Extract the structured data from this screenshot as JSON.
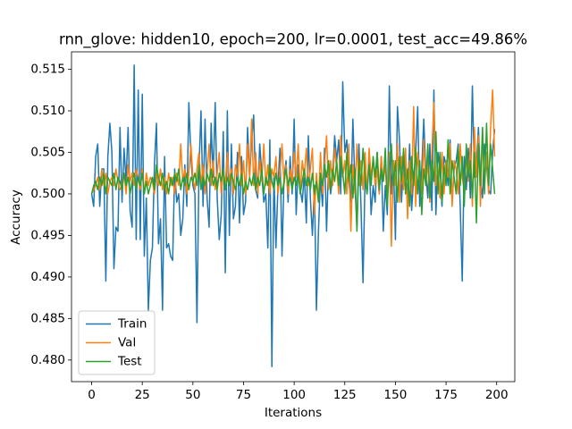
{
  "chart_data": {
    "type": "line",
    "title": "rnn_glove: hidden10, epoch=200, lr=0.0001, test_acc=49.86%",
    "xlabel": "Iterations",
    "ylabel": "Accuracy",
    "xlim": [
      -9.95,
      208.95
    ],
    "ylim": [
      0.4774,
      0.5171
    ],
    "xticks": [
      0,
      25,
      50,
      75,
      100,
      125,
      150,
      175,
      200
    ],
    "yticks": [
      {
        "value": 0.48,
        "label": "0.480"
      },
      0.485,
      {
        "value": 0.49,
        "label": "0.490"
      },
      0.495,
      {
        "value": 0.5,
        "label": "0.500"
      },
      0.505,
      {
        "value": 0.51,
        "label": "0.510"
      },
      0.515
    ],
    "legend": "lower left",
    "x": [
      0,
      1,
      2,
      3,
      4,
      5,
      6,
      7,
      8,
      9,
      10,
      11,
      12,
      13,
      14,
      15,
      16,
      17,
      18,
      19,
      20,
      21,
      22,
      23,
      24,
      25,
      26,
      27,
      28,
      29,
      30,
      31,
      32,
      33,
      34,
      35,
      36,
      37,
      38,
      39,
      40,
      41,
      42,
      43,
      44,
      45,
      46,
      47,
      48,
      49,
      50,
      51,
      52,
      53,
      54,
      55,
      56,
      57,
      58,
      59,
      60,
      61,
      62,
      63,
      64,
      65,
      66,
      67,
      68,
      69,
      70,
      71,
      72,
      73,
      74,
      75,
      76,
      77,
      78,
      79,
      80,
      81,
      82,
      83,
      84,
      85,
      86,
      87,
      88,
      89,
      90,
      91,
      92,
      93,
      94,
      95,
      96,
      97,
      98,
      99,
      100,
      101,
      102,
      103,
      104,
      105,
      106,
      107,
      108,
      109,
      110,
      111,
      112,
      113,
      114,
      115,
      116,
      117,
      118,
      119,
      120,
      121,
      122,
      123,
      124,
      125,
      126,
      127,
      128,
      129,
      130,
      131,
      132,
      133,
      134,
      135,
      136,
      137,
      138,
      139,
      140,
      141,
      142,
      143,
      144,
      145,
      146,
      147,
      148,
      149,
      150,
      151,
      152,
      153,
      154,
      155,
      156,
      157,
      158,
      159,
      160,
      161,
      162,
      163,
      164,
      165,
      166,
      167,
      168,
      169,
      170,
      171,
      172,
      173,
      174,
      175,
      176,
      177,
      178,
      179,
      180,
      181,
      182,
      183,
      184,
      185,
      186,
      187,
      188,
      189,
      190,
      191,
      192,
      193,
      194,
      195,
      196,
      197,
      198,
      199
    ],
    "series": [
      {
        "name": "Train",
        "color": "#1f77b4",
        "values": [
          0.5,
          0.4985,
          0.5045,
          0.506,
          0.4985,
          0.503,
          0.503,
          0.4895,
          0.5045,
          0.5085,
          0.505,
          0.491,
          0.496,
          0.4955,
          0.508,
          0.499,
          0.5055,
          0.5015,
          0.508,
          0.498,
          0.496,
          0.5155,
          0.4945,
          0.5125,
          0.4945,
          0.512,
          0.4925,
          0.4995,
          0.486,
          0.492,
          0.4935,
          0.5035,
          0.5085,
          0.494,
          0.497,
          0.486,
          0.5045,
          0.4935,
          0.494,
          0.4925,
          0.492,
          0.503,
          0.499,
          0.5,
          0.495,
          0.497,
          0.5035,
          0.4985,
          0.511,
          0.5045,
          0.501,
          0.5,
          0.4845,
          0.503,
          0.51,
          0.4985,
          0.509,
          0.4995,
          0.496,
          0.5085,
          0.502,
          0.511,
          0.4995,
          0.4945,
          0.4975,
          0.5075,
          0.4905,
          0.51,
          0.495,
          0.506,
          0.497,
          0.4985,
          0.505,
          0.4965,
          0.5045,
          0.4975,
          0.499,
          0.508,
          0.502,
          0.5065,
          0.5095,
          0.5005,
          0.4995,
          0.506,
          0.5025,
          0.499,
          0.5,
          0.4935,
          0.5065,
          0.4792,
          0.5025,
          0.4935,
          0.501,
          0.5055,
          0.4925,
          0.502,
          0.504,
          0.499,
          0.5045,
          0.5,
          0.509,
          0.4975,
          0.5035,
          0.5005,
          0.499,
          0.5025,
          0.4965,
          0.507,
          0.4995,
          0.495,
          0.501,
          0.486,
          0.4955,
          0.502,
          0.4985,
          0.5055,
          0.4955,
          0.504,
          0.5,
          0.502,
          0.507,
          0.504,
          0.5065,
          0.5,
          0.5135,
          0.505,
          0.5065,
          0.5015,
          0.499,
          0.509,
          0.501,
          0.496,
          0.506,
          0.4985,
          0.4893,
          0.502,
          0.5,
          0.5045,
          0.4975,
          0.501,
          0.499,
          0.505,
          0.5,
          0.5045,
          0.4955,
          0.501,
          0.4975,
          0.513,
          0.5,
          0.504,
          0.4945,
          0.5105,
          0.5065,
          0.499,
          0.504,
          0.503,
          0.4995,
          0.506,
          0.498,
          0.502,
          0.505,
          0.5105,
          0.4985,
          0.503,
          0.509,
          0.5025,
          0.4995,
          0.506,
          0.498,
          0.5125,
          0.4975,
          0.505,
          0.503,
          0.4985,
          0.5045,
          0.5035,
          0.501,
          0.5065,
          0.499,
          0.503,
          0.504,
          0.506,
          0.4985,
          0.4895,
          0.5045,
          0.5005,
          0.5055,
          0.4995,
          0.513,
          0.502,
          0.5035,
          0.508,
          0.5015,
          0.4995,
          0.506,
          0.5035,
          0.5005,
          0.5,
          0.505,
          0.5078
        ]
      },
      {
        "name": "Val",
        "color": "#ff7f0e",
        "values": [
          0.5,
          0.5005,
          0.501,
          0.502,
          0.5005,
          0.503,
          0.501,
          0.5025,
          0.5,
          0.5015,
          0.502,
          0.501,
          0.503,
          0.5015,
          0.5005,
          0.501,
          0.5025,
          0.5,
          0.5035,
          0.5015,
          0.5025,
          0.501,
          0.503,
          0.502,
          0.5005,
          0.503,
          0.5,
          0.5025,
          0.501,
          0.502,
          0.5015,
          0.5,
          0.5025,
          0.501,
          0.503,
          0.5005,
          0.502,
          0.5,
          0.5025,
          0.501,
          0.502,
          0.5,
          0.5025,
          0.501,
          0.506,
          0.5015,
          0.503,
          0.5,
          0.5025,
          0.506,
          0.502,
          0.5005,
          0.503,
          0.505,
          0.501,
          0.5035,
          0.5,
          0.5025,
          0.506,
          0.501,
          0.504,
          0.5005,
          0.5025,
          0.505,
          0.5,
          0.503,
          0.501,
          0.505,
          0.5015,
          0.503,
          0.5,
          0.5035,
          0.502,
          0.506,
          0.501,
          0.504,
          0.5,
          0.506,
          0.502,
          0.509,
          0.501,
          0.505,
          0.5,
          0.504,
          0.5015,
          0.506,
          0.501,
          0.5035,
          0.5,
          0.503,
          0.502,
          0.5045,
          0.5,
          0.5025,
          0.506,
          0.501,
          0.5035,
          0.5,
          0.503,
          0.5015,
          0.505,
          0.502,
          0.506,
          0.5,
          0.504,
          0.502,
          0.5055,
          0.501,
          0.503,
          0.5055,
          0.4975,
          0.5025,
          0.499,
          0.505,
          0.5,
          0.5035,
          0.507,
          0.5005,
          0.504,
          0.501,
          0.5055,
          0.503,
          0.5,
          0.507,
          0.502,
          0.504,
          0.5,
          0.506,
          0.4955,
          0.5035,
          0.5,
          0.506,
          0.501,
          0.504,
          0.5005,
          0.505,
          0.5,
          0.5055,
          0.502,
          0.504,
          0.501,
          0.503,
          0.5,
          0.5045,
          0.5015,
          0.5035,
          0.499,
          0.505,
          0.4937,
          0.504,
          0.501,
          0.506,
          0.499,
          0.5045,
          0.5005,
          0.5055,
          0.497,
          0.504,
          0.5,
          0.5105,
          0.4985,
          0.505,
          0.502,
          0.5,
          0.5065,
          0.501,
          0.504,
          0.499,
          0.505,
          0.511,
          0.501,
          0.503,
          0.4995,
          0.505,
          0.5,
          0.504,
          0.502,
          0.506,
          0.4985,
          0.504,
          0.503,
          0.5,
          0.506,
          0.502,
          0.5005,
          0.5045,
          0.5015,
          0.506,
          0.4985,
          0.508,
          0.502,
          0.507,
          0.4985,
          0.5075,
          0.501,
          0.505,
          0.5,
          0.508,
          0.5125,
          0.5045
        ]
      },
      {
        "name": "Test",
        "color": "#2ca02c",
        "values": [
          0.5,
          0.501,
          0.5015,
          0.5005,
          0.502,
          0.501,
          0.5025,
          0.5,
          0.502,
          0.5015,
          0.501,
          0.5025,
          0.5005,
          0.502,
          0.5015,
          0.5005,
          0.5025,
          0.501,
          0.502,
          0.5,
          0.5015,
          0.5025,
          0.5005,
          0.502,
          0.501,
          0.5025,
          0.5,
          0.5015,
          0.5,
          0.501,
          0.502,
          0.5005,
          0.5035,
          0.502,
          0.501,
          0.5025,
          0.5005,
          0.5015,
          0.5,
          0.502,
          0.501,
          0.5025,
          0.5015,
          0.503,
          0.5005,
          0.502,
          0.501,
          0.5025,
          0.5005,
          0.502,
          0.5015,
          0.5025,
          0.501,
          0.5035,
          0.5005,
          0.502,
          0.501,
          0.5025,
          0.5015,
          0.503,
          0.501,
          0.502,
          0.5005,
          0.5025,
          0.5015,
          0.503,
          0.5005,
          0.502,
          0.501,
          0.5025,
          0.5015,
          0.5005,
          0.502,
          0.501,
          0.5025,
          0.5,
          0.5015,
          0.5005,
          0.502,
          0.501,
          0.5025,
          0.5005,
          0.502,
          0.501,
          0.503,
          0.5,
          0.502,
          0.501,
          0.5035,
          0.5015,
          0.5005,
          0.5025,
          0.501,
          0.502,
          0.5,
          0.5015,
          0.503,
          0.501,
          0.502,
          0.5005,
          0.502,
          0.501,
          0.5025,
          0.5,
          0.5015,
          0.503,
          0.501,
          0.502,
          0.5005,
          0.5025,
          0.5,
          0.5015,
          0.499,
          0.5025,
          0.501,
          0.5035,
          0.502,
          0.504,
          0.5005,
          0.503,
          0.5015,
          0.504,
          0.501,
          0.5045,
          0.5025,
          0.5,
          0.505,
          0.5015,
          0.5035,
          0.4995,
          0.503,
          0.4955,
          0.504,
          0.501,
          0.5055,
          0.502,
          0.5,
          0.5035,
          0.501,
          0.5045,
          0.502,
          0.505,
          0.5005,
          0.503,
          0.5015,
          0.5055,
          0.4985,
          0.5035,
          0.506,
          0.501,
          0.504,
          0.499,
          0.5045,
          0.5015,
          0.5055,
          0.5,
          0.503,
          0.4985,
          0.5045,
          0.501,
          0.5055,
          0.5,
          0.504,
          0.4975,
          0.503,
          0.501,
          0.506,
          0.4995,
          0.504,
          0.5015,
          0.5075,
          0.5,
          0.505,
          0.499,
          0.5035,
          0.501,
          0.5065,
          0.5,
          0.504,
          0.502,
          0.5,
          0.5055,
          0.501,
          0.5045,
          0.4985,
          0.506,
          0.502,
          0.504,
          0.4995,
          0.505,
          0.4965,
          0.506,
          0.501,
          0.508,
          0.5,
          0.5085,
          0.501,
          0.506,
          0.503,
          0.5
        ]
      }
    ]
  }
}
